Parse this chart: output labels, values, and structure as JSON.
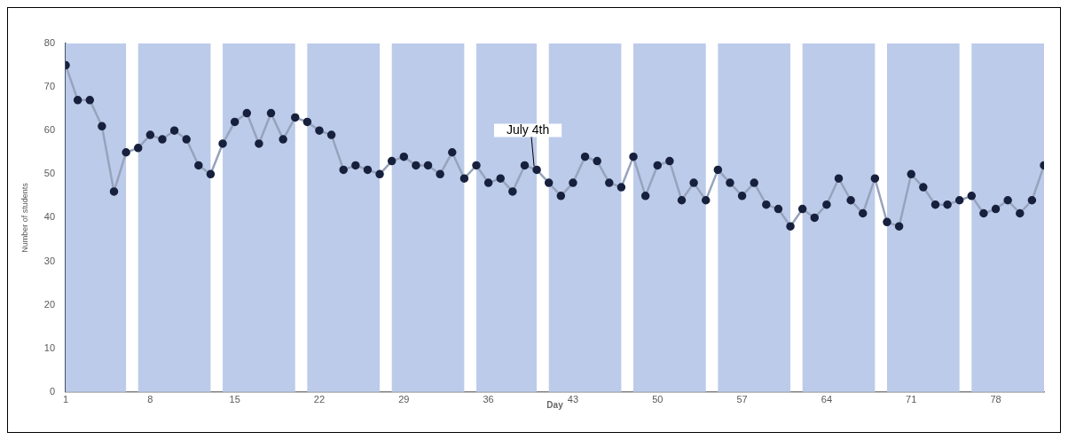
{
  "chart_data": {
    "type": "line",
    "xlabel": "Day",
    "ylabel": "Number of students",
    "x": [
      1,
      2,
      3,
      4,
      5,
      6,
      7,
      8,
      9,
      10,
      11,
      12,
      13,
      14,
      15,
      16,
      17,
      18,
      19,
      20,
      21,
      22,
      23,
      24,
      25,
      26,
      27,
      28,
      29,
      30,
      31,
      32,
      33,
      34,
      35,
      36,
      37,
      38,
      39,
      40,
      41,
      42,
      43,
      44,
      45,
      46,
      47,
      48,
      49,
      50,
      51,
      52,
      53,
      54,
      55,
      56,
      57,
      58,
      59,
      60,
      61,
      62,
      63,
      64,
      65,
      66,
      67,
      68,
      69,
      70,
      71,
      72,
      73,
      74,
      75,
      76,
      77,
      78,
      79,
      80,
      81,
      82
    ],
    "series": [
      {
        "color": "#97a3bd",
        "values": [
          75,
          67,
          67,
          61,
          46,
          55,
          56,
          59,
          58,
          60,
          58,
          52,
          50,
          57,
          62,
          64,
          57,
          64,
          58,
          63,
          62,
          60,
          59,
          51,
          52,
          51,
          50,
          53,
          54,
          52,
          52,
          50,
          55,
          49,
          52,
          48,
          49,
          46,
          52,
          51,
          48,
          45,
          48,
          54,
          53,
          48,
          47,
          54,
          45,
          52,
          53,
          44,
          48,
          44,
          51,
          48,
          45,
          48,
          43,
          42,
          38,
          42,
          40,
          43,
          49,
          44,
          41,
          49,
          39,
          38,
          50,
          47,
          43,
          43,
          44,
          45,
          41,
          42,
          44,
          41,
          44,
          52
        ]
      }
    ],
    "marker": "circle",
    "line_style": "solid",
    "xlim": [
      1,
      82
    ],
    "xticks": [
      1,
      8,
      15,
      22,
      29,
      36,
      43,
      50,
      57,
      64,
      71,
      78
    ],
    "ylim": [
      0,
      80
    ],
    "yticks": [
      0,
      10,
      20,
      30,
      40,
      50,
      60,
      70,
      80
    ],
    "grid": false,
    "legend": false,
    "bands": [
      {
        "axis": "x",
        "from": 1,
        "to": 6,
        "color": "#bccbea"
      },
      {
        "axis": "x",
        "from": 7,
        "to": 13,
        "color": "#bccbea"
      },
      {
        "axis": "x",
        "from": 14,
        "to": 20,
        "color": "#bccbea"
      },
      {
        "axis": "x",
        "from": 21,
        "to": 27,
        "color": "#bccbea"
      },
      {
        "axis": "x",
        "from": 28,
        "to": 34,
        "color": "#bccbea"
      },
      {
        "axis": "x",
        "from": 35,
        "to": 40,
        "color": "#bccbea"
      },
      {
        "axis": "x",
        "from": 41,
        "to": 47,
        "color": "#bccbea"
      },
      {
        "axis": "x",
        "from": 48,
        "to": 54,
        "color": "#bccbea"
      },
      {
        "axis": "x",
        "from": 55,
        "to": 61,
        "color": "#bccbea"
      },
      {
        "axis": "x",
        "from": 62,
        "to": 68,
        "color": "#bccbea"
      },
      {
        "axis": "x",
        "from": 69,
        "to": 75,
        "color": "#bccbea"
      },
      {
        "axis": "x",
        "from": 76,
        "to": 82,
        "color": "#bccbea"
      }
    ],
    "annotations": [
      {
        "text": "July 4th",
        "x": 40,
        "y": 51
      }
    ]
  }
}
